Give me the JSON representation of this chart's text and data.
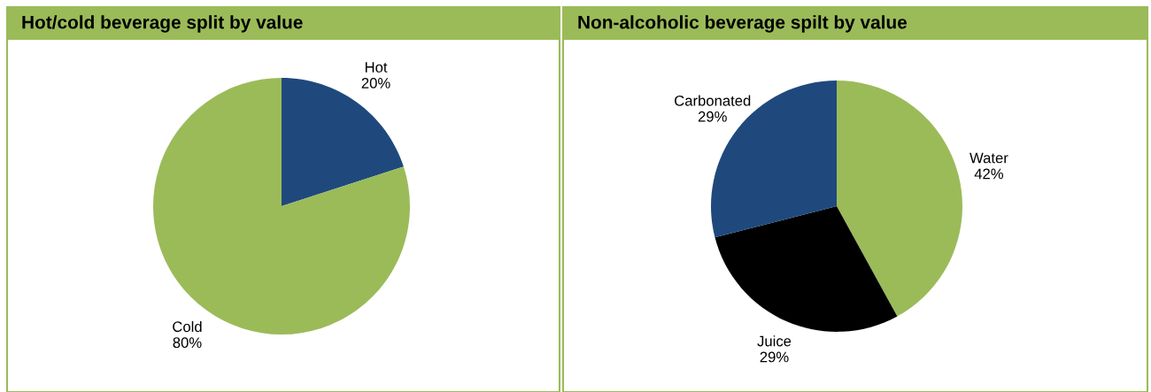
{
  "chart_data": [
    {
      "type": "pie",
      "title": "Hot/cold beverage split by value",
      "categories": [
        "Hot",
        "Cold"
      ],
      "values": [
        20,
        80
      ],
      "colors": [
        "#1f497d",
        "#9bbb59"
      ],
      "value_labels": [
        "20%",
        "80%"
      ]
    },
    {
      "type": "pie",
      "title": "Non-alcoholic beverage spilt by value",
      "categories": [
        "Water",
        "Juice",
        "Carbonated"
      ],
      "values": [
        42,
        29,
        29
      ],
      "colors": [
        "#9bbb59",
        "#000000",
        "#1f497d"
      ],
      "value_labels": [
        "42%",
        "29%",
        "29%"
      ]
    }
  ]
}
